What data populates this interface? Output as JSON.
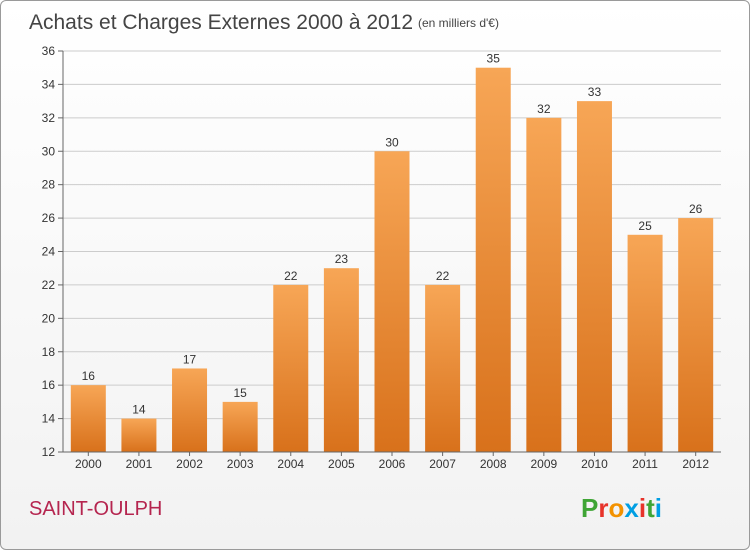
{
  "chart_data": {
    "type": "bar",
    "title": "Achats et Charges Externes 2000 à 2012",
    "subtitle": "(en milliers d'€)",
    "categories": [
      "2000",
      "2001",
      "2002",
      "2003",
      "2004",
      "2005",
      "2006",
      "2007",
      "2008",
      "2009",
      "2010",
      "2011",
      "2012"
    ],
    "values": [
      16,
      14,
      17,
      15,
      22,
      23,
      30,
      22,
      35,
      32,
      33,
      25,
      26
    ],
    "ylim": [
      12,
      36
    ],
    "yticks": [
      "12",
      "14",
      "16",
      "18",
      "20",
      "22",
      "24",
      "26",
      "28",
      "30",
      "32",
      "34",
      "36"
    ],
    "grid": true,
    "bar_color_top": "#f7a656",
    "bar_color_bottom": "#d8711b"
  },
  "footer": {
    "place_name": "SAINT-OULPH",
    "logo_text": "Proxiti",
    "logo_letters": [
      "P",
      "r",
      "o",
      "x",
      "i",
      "t",
      "i"
    ],
    "logo_colors": [
      "#3fa535",
      "#e7332a",
      "#f39200",
      "#009fe3",
      "#e7332a",
      "#3fa535",
      "#009fe3"
    ]
  }
}
